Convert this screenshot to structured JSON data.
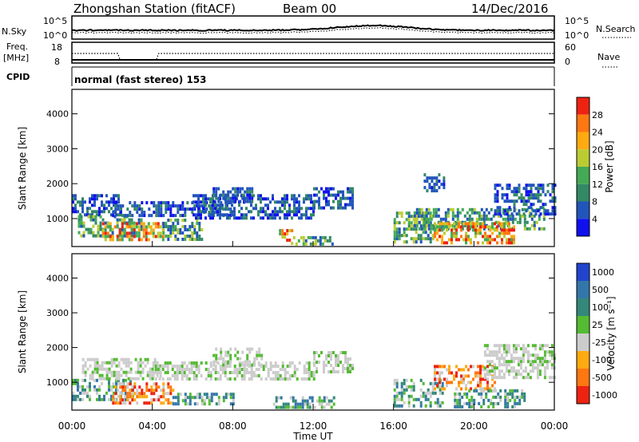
{
  "header": {
    "station": "Zhongshan Station (fitACF)",
    "beam": "Beam 00",
    "date": "14/Dec/2016"
  },
  "nsky_panel": {
    "left_label": "N.Sky",
    "right_label": "N.Search",
    "left_ticks": [
      "10^5",
      "10^0"
    ],
    "right_ticks": [
      "10^5",
      "10^0"
    ],
    "right_legend_style": "dotted"
  },
  "freq_panel": {
    "left_label_line1": "Freq.",
    "left_label_line2": "[MHz]",
    "left_ticks": [
      "18",
      "8"
    ],
    "right_label": "Nave",
    "right_ticks": [
      "60",
      "0"
    ],
    "right_legend_style": "dotted"
  },
  "cpid": {
    "label": "CPID",
    "value": "normal (fast stereo) 153"
  },
  "power_panel": {
    "ylabel": "Slant Range [km]",
    "y_ticks": [
      1000,
      2000,
      3000,
      4000
    ],
    "ylim": [
      200,
      4700
    ],
    "colorbar_label": "Power [dB]",
    "colorbar_ticks": [
      "4",
      "8",
      "12",
      "16",
      "20",
      "24",
      "28"
    ],
    "colorbar_colors": [
      "#1010ee",
      "#2255bb",
      "#338866",
      "#44aa55",
      "#bbcc33",
      "#ffaa11",
      "#ff7711",
      "#ee2211"
    ]
  },
  "velocity_panel": {
    "ylabel": "Slant Range [km]",
    "y_ticks": [
      1000,
      2000,
      3000,
      4000
    ],
    "ylim": [
      200,
      4700
    ],
    "colorbar_label": "Velocity [m s⁻¹]",
    "colorbar_ticks": [
      "1000",
      "500",
      "100",
      "25",
      "-25",
      "-100",
      "-500",
      "-1000"
    ],
    "colorbar_colors": [
      "#2244cc",
      "#3377aa",
      "#33887a",
      "#55bb33",
      "#cccccc",
      "#ffaa11",
      "#ff7711",
      "#ee2211"
    ]
  },
  "x_axis": {
    "label": "Time UT",
    "ticks": [
      "00:00",
      "04:00",
      "08:00",
      "12:00",
      "16:00",
      "20:00",
      "00:00"
    ]
  },
  "chart_data": {
    "type": "heatmap",
    "x": "Time UT (hours)",
    "xlim": [
      0,
      24
    ],
    "ylim": [
      200,
      4700
    ],
    "power_regions": [
      {
        "t0": 0.0,
        "t1": 2.5,
        "r0": 1100,
        "r1": 1700,
        "level": "low"
      },
      {
        "t0": 0.3,
        "t1": 3.5,
        "r0": 500,
        "r1": 1100,
        "level": "mid"
      },
      {
        "t0": 1.5,
        "t1": 4.5,
        "r0": 400,
        "r1": 900,
        "level": "high"
      },
      {
        "t0": 2.0,
        "t1": 8.0,
        "r0": 1100,
        "r1": 1500,
        "level": "low"
      },
      {
        "t0": 4.5,
        "t1": 6.5,
        "r0": 400,
        "r1": 1000,
        "level": "mid"
      },
      {
        "t0": 6.0,
        "t1": 12.0,
        "r0": 1000,
        "r1": 1700,
        "level": "low"
      },
      {
        "t0": 7.0,
        "t1": 9.0,
        "r0": 1500,
        "r1": 1900,
        "level": "low"
      },
      {
        "t0": 10.3,
        "t1": 11.0,
        "r0": 300,
        "r1": 700,
        "level": "high"
      },
      {
        "t0": 11.0,
        "t1": 13.0,
        "r0": 300,
        "r1": 500,
        "level": "mid"
      },
      {
        "t0": 12.0,
        "t1": 14.0,
        "r0": 1300,
        "r1": 1900,
        "level": "low"
      },
      {
        "t0": 16.0,
        "t1": 18.0,
        "r0": 300,
        "r1": 1200,
        "level": "mid"
      },
      {
        "t0": 17.0,
        "t1": 23.5,
        "r0": 700,
        "r1": 1300,
        "level": "mid"
      },
      {
        "t0": 18.0,
        "t1": 22.0,
        "r0": 300,
        "r1": 900,
        "level": "high"
      },
      {
        "t0": 17.5,
        "t1": 18.5,
        "r0": 1800,
        "r1": 2300,
        "level": "low"
      },
      {
        "t0": 21.0,
        "t1": 24.0,
        "r0": 1100,
        "r1": 2000,
        "level": "low"
      }
    ],
    "velocity_regions": [
      {
        "t0": 0.0,
        "t1": 3.0,
        "r0": 500,
        "r1": 1100,
        "level": "pos"
      },
      {
        "t0": 0.5,
        "t1": 4.5,
        "r0": 1100,
        "r1": 1700,
        "level": "neutral"
      },
      {
        "t0": 2.0,
        "t1": 5.0,
        "r0": 400,
        "r1": 1000,
        "level": "neg"
      },
      {
        "t0": 4.0,
        "t1": 12.0,
        "r0": 1100,
        "r1": 1600,
        "level": "neutral"
      },
      {
        "t0": 5.0,
        "t1": 8.0,
        "r0": 400,
        "r1": 700,
        "level": "pos"
      },
      {
        "t0": 7.0,
        "t1": 9.5,
        "r0": 1500,
        "r1": 2000,
        "level": "neutral"
      },
      {
        "t0": 10.0,
        "t1": 13.0,
        "r0": 300,
        "r1": 600,
        "level": "pos"
      },
      {
        "t0": 12.0,
        "t1": 14.0,
        "r0": 1300,
        "r1": 1900,
        "level": "neutral"
      },
      {
        "t0": 16.0,
        "t1": 18.5,
        "r0": 300,
        "r1": 1100,
        "level": "pos"
      },
      {
        "t0": 18.0,
        "t1": 21.0,
        "r0": 800,
        "r1": 1500,
        "level": "neg"
      },
      {
        "t0": 19.0,
        "t1": 22.5,
        "r0": 300,
        "r1": 800,
        "level": "pos"
      },
      {
        "t0": 20.5,
        "t1": 24.0,
        "r0": 1100,
        "r1": 2100,
        "level": "neutral"
      }
    ]
  }
}
